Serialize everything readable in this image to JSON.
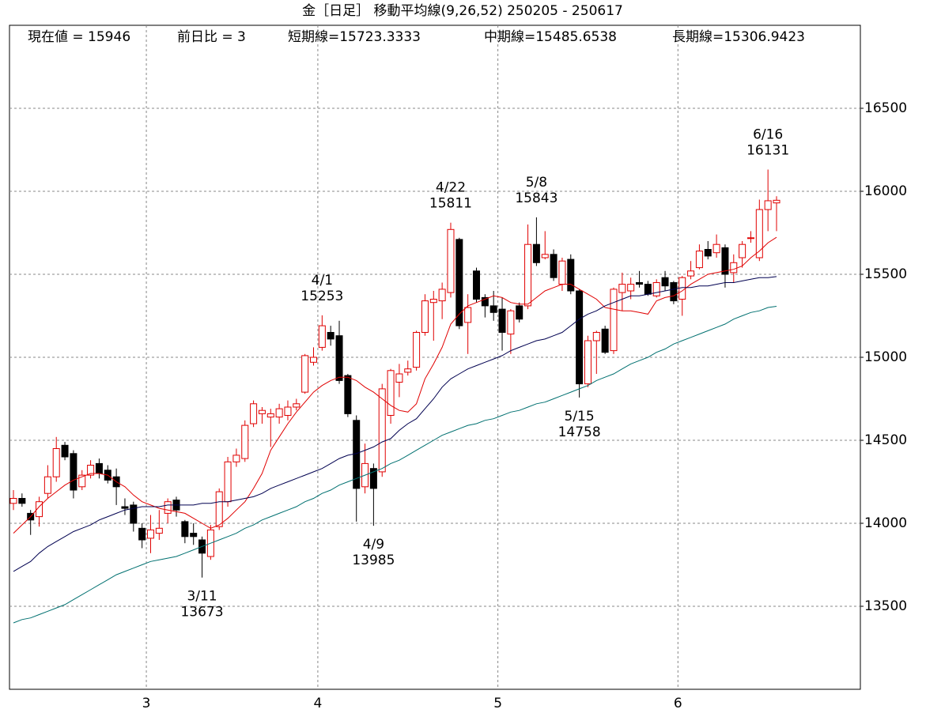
{
  "chart_data": {
    "type": "candlestick",
    "title": "金［日足］ 移動平均線(9,26,52)  250205 - 250617",
    "info": [
      "現在値 = 15946",
      "前日比 = 3",
      "短期線=15723.3333",
      "中期線=15485.6538",
      "長期線=15306.9423"
    ],
    "categories": [
      null,
      null,
      null,
      null,
      null,
      null,
      null,
      null,
      null,
      null,
      null,
      null,
      null,
      null,
      null,
      null,
      "3",
      null,
      null,
      null,
      null,
      null,
      null,
      null,
      null,
      null,
      null,
      null,
      null,
      null,
      null,
      null,
      null,
      null,
      null,
      null,
      "4",
      null,
      null,
      null,
      null,
      null,
      null,
      null,
      null,
      null,
      null,
      null,
      null,
      null,
      null,
      null,
      null,
      null,
      null,
      null,
      null,
      "5",
      null,
      null,
      null,
      null,
      null,
      null,
      null,
      null,
      null,
      null,
      null,
      null,
      null,
      null,
      null,
      null,
      null,
      null,
      null,
      null,
      "6",
      null,
      null,
      null,
      null,
      null,
      null,
      null,
      null,
      null,
      null,
      null
    ],
    "open": [
      14120,
      14150,
      14060,
      14040,
      14180,
      14280,
      14470,
      14420,
      14220,
      14290,
      14360,
      14320,
      14280,
      14100,
      14110,
      13970,
      13910,
      13940,
      14060,
      14140,
      14010,
      13940,
      13900,
      13800,
      13980,
      14130,
      14370,
      14390,
      14600,
      14660,
      14640,
      14640,
      14650,
      14700,
      14790,
      14970,
      15060,
      15150,
      15130,
      14890,
      14620,
      14220,
      14330,
      14310,
      14650,
      14850,
      14910,
      14940,
      15150,
      15330,
      15340,
      15390,
      15710,
      15210,
      15520,
      15360,
      15310,
      15290,
      15140,
      15310,
      15310,
      15680,
      15600,
      15620,
      15440,
      15590,
      15400,
      14840,
      15100,
      15170,
      15040,
      15390,
      15400,
      15450,
      15440,
      15370,
      15480,
      15450,
      15350,
      15490,
      15540,
      15650,
      15630,
      15660,
      15510,
      15600,
      15720,
      15600,
      15890,
      15930
    ],
    "high": [
      14200,
      14180,
      14080,
      14160,
      14350,
      14520,
      14490,
      14440,
      14320,
      14380,
      14390,
      14350,
      14330,
      14150,
      14130,
      14000,
      14050,
      14080,
      14150,
      14160,
      14020,
      14000,
      13920,
      13990,
      14210,
      14400,
      14450,
      14620,
      14740,
      14700,
      14690,
      14720,
      14740,
      14750,
      15020,
      15060,
      15253,
      15190,
      15220,
      14900,
      14650,
      14480,
      14360,
      14840,
      14930,
      14960,
      14980,
      15160,
      15380,
      15400,
      15450,
      15811,
      15720,
      15380,
      15540,
      15380,
      15400,
      15360,
      15290,
      15330,
      15800,
      15843,
      15760,
      15650,
      15600,
      15620,
      15410,
      15130,
      15160,
      15190,
      15420,
      15510,
      15480,
      15520,
      15460,
      15470,
      15520,
      15460,
      15490,
      15580,
      15680,
      15700,
      15740,
      15680,
      15620,
      15700,
      15760,
      15950,
      16131,
      15970
    ],
    "low": [
      14080,
      14100,
      13930,
      13980,
      14150,
      14250,
      14380,
      14150,
      14200,
      14270,
      14270,
      14240,
      14110,
      14050,
      13950,
      13850,
      13820,
      13900,
      14000,
      14040,
      13880,
      13870,
      13673,
      13780,
      13960,
      14100,
      14340,
      14370,
      14580,
      14600,
      14460,
      14600,
      14620,
      14680,
      14780,
      14950,
      15040,
      15070,
      14840,
      14640,
      14010,
      14180,
      13985,
      14280,
      14600,
      14760,
      14890,
      14920,
      15130,
      15100,
      15230,
      15360,
      15170,
      15020,
      15330,
      15240,
      15220,
      15040,
      15020,
      15210,
      15290,
      15550,
      15590,
      15460,
      15400,
      15380,
      14758,
      14820,
      14900,
      15020,
      15020,
      15280,
      15350,
      15420,
      15370,
      15360,
      15400,
      15320,
      15250,
      15470,
      15530,
      15590,
      15600,
      15420,
      15450,
      15540,
      15690,
      15580,
      15760,
      15760
    ],
    "close": [
      14150,
      14120,
      14020,
      14130,
      14280,
      14450,
      14400,
      14200,
      14290,
      14350,
      14300,
      14260,
      14220,
      14090,
      14000,
      13900,
      13960,
      13970,
      14130,
      14080,
      13920,
      13920,
      13820,
      13960,
      14190,
      14370,
      14410,
      14590,
      14720,
      14680,
      14660,
      14690,
      14700,
      14720,
      15010,
      15000,
      15190,
      15110,
      14860,
      14660,
      14210,
      14360,
      14210,
      14810,
      14920,
      14900,
      14930,
      15150,
      15340,
      15350,
      15410,
      15770,
      15190,
      15300,
      15350,
      15310,
      15270,
      15150,
      15280,
      15230,
      15680,
      15570,
      15620,
      15480,
      15580,
      15400,
      14840,
      15100,
      15150,
      15030,
      15410,
      15440,
      15440,
      15440,
      15380,
      15450,
      15430,
      15340,
      15480,
      15520,
      15640,
      15610,
      15680,
      15500,
      15570,
      15680,
      15720,
      15890,
      15943,
      15946
    ],
    "up_color": "#e00000",
    "down_color": "#000000",
    "series": [
      {
        "color": "#e00000",
        "values": [
          13940,
          13990,
          14040,
          14100,
          14150,
          14190,
          14230,
          14260,
          14280,
          14300,
          14300,
          14290,
          14250,
          14220,
          14170,
          14130,
          14110,
          14090,
          14080,
          14070,
          14060,
          14030,
          14000,
          13970,
          13990,
          14030,
          14080,
          14130,
          14210,
          14300,
          14440,
          14520,
          14600,
          14670,
          14730,
          14790,
          14830,
          14860,
          14880,
          14880,
          14860,
          14820,
          14790,
          14750,
          14710,
          14680,
          14670,
          14720,
          14870,
          14960,
          15060,
          15200,
          15260,
          15310,
          15330,
          15350,
          15370,
          15360,
          15330,
          15320,
          15320,
          15360,
          15400,
          15420,
          15440,
          15440,
          15410,
          15380,
          15350,
          15300,
          15290,
          15280,
          15280,
          15270,
          15260,
          15340,
          15360,
          15370,
          15400,
          15440,
          15470,
          15500,
          15510,
          15520,
          15530,
          15550,
          15600,
          15640,
          15690,
          15723
        ]
      },
      {
        "color": "#000050",
        "values": [
          13710,
          13740,
          13770,
          13820,
          13860,
          13890,
          13920,
          13950,
          13970,
          13990,
          14020,
          14040,
          14060,
          14080,
          14090,
          14100,
          14100,
          14100,
          14110,
          14110,
          14110,
          14110,
          14120,
          14120,
          14130,
          14130,
          14140,
          14150,
          14160,
          14180,
          14210,
          14230,
          14250,
          14270,
          14290,
          14310,
          14330,
          14360,
          14390,
          14410,
          14420,
          14440,
          14460,
          14490,
          14510,
          14560,
          14600,
          14630,
          14690,
          14750,
          14820,
          14870,
          14900,
          14930,
          14950,
          14970,
          14990,
          15010,
          15040,
          15060,
          15080,
          15100,
          15110,
          15130,
          15150,
          15190,
          15230,
          15260,
          15280,
          15310,
          15330,
          15350,
          15370,
          15370,
          15380,
          15390,
          15400,
          15410,
          15420,
          15420,
          15430,
          15430,
          15440,
          15450,
          15450,
          15460,
          15470,
          15480,
          15480,
          15486
        ]
      },
      {
        "color": "#007070",
        "values": [
          13400,
          13420,
          13430,
          13450,
          13470,
          13490,
          13510,
          13540,
          13570,
          13600,
          13630,
          13660,
          13690,
          13710,
          13730,
          13750,
          13770,
          13780,
          13790,
          13800,
          13820,
          13840,
          13860,
          13880,
          13900,
          13920,
          13940,
          13970,
          13990,
          14020,
          14040,
          14060,
          14080,
          14100,
          14130,
          14150,
          14180,
          14200,
          14230,
          14250,
          14270,
          14290,
          14310,
          14330,
          14360,
          14380,
          14410,
          14440,
          14470,
          14500,
          14530,
          14550,
          14570,
          14590,
          14600,
          14620,
          14630,
          14650,
          14670,
          14680,
          14700,
          14720,
          14730,
          14750,
          14770,
          14790,
          14810,
          14830,
          14860,
          14880,
          14900,
          14930,
          14960,
          14980,
          15000,
          15030,
          15050,
          15080,
          15100,
          15120,
          15140,
          15160,
          15180,
          15200,
          15230,
          15250,
          15270,
          15280,
          15300,
          15307
        ]
      }
    ],
    "annotations": [
      {
        "label": "3/11",
        "value": 13673
      },
      {
        "label": "4/1",
        "value": 15253
      },
      {
        "label": "4/9",
        "value": 13985
      },
      {
        "label": "4/22",
        "value": 15811
      },
      {
        "label": "5/8",
        "value": 15843
      },
      {
        "label": "5/15",
        "value": 14758
      },
      {
        "label": "6/16",
        "value": 16131
      }
    ],
    "ylim": [
      13000,
      17000
    ],
    "yticks": [
      13500,
      14000,
      14500,
      15000,
      15500,
      16000,
      16500
    ],
    "grid": true
  }
}
